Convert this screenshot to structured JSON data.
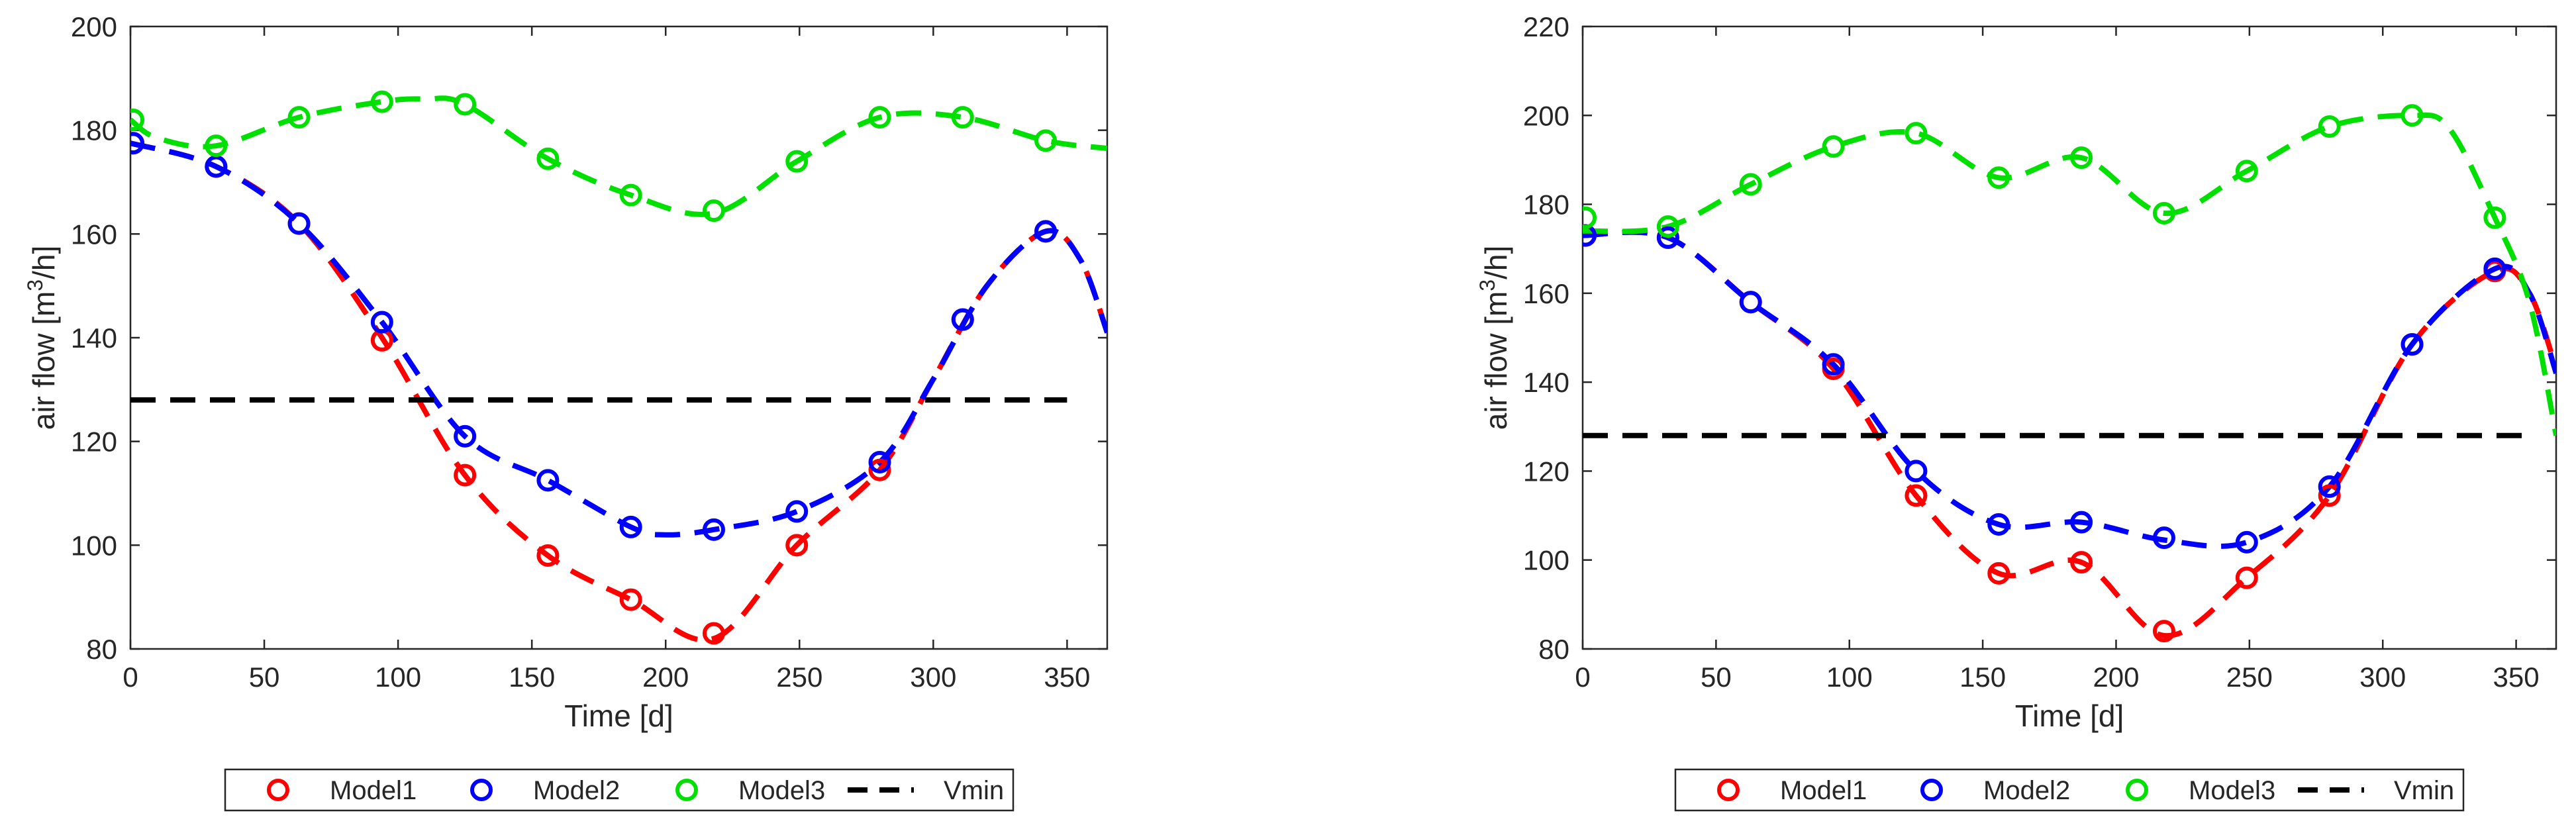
{
  "chart_data": [
    {
      "type": "line",
      "title": "",
      "xlabel": "Time [d]",
      "ylabel": "air flow [m³/h]",
      "ylabel_parts": {
        "base": "air flow [m",
        "sup": "3",
        "tail": "/h]"
      },
      "xlim": [
        0,
        365
      ],
      "ylim": [
        80,
        200
      ],
      "xticks": [
        0,
        50,
        100,
        150,
        200,
        250,
        300,
        350
      ],
      "yticks": [
        80,
        100,
        120,
        140,
        160,
        180,
        200
      ],
      "markers_x": [
        1,
        32,
        63,
        94,
        125,
        156,
        187,
        218,
        249,
        280,
        311,
        342
      ],
      "series": [
        {
          "name": "Model1",
          "color": "#ff0000",
          "marker_values": [
            177.5,
            173,
            162,
            139.5,
            113.5,
            98,
            89.5,
            83,
            100,
            114.5,
            143.5,
            160.5
          ],
          "curve": {
            "x": [
              0,
              32,
              63,
              94,
              125,
              156,
              187,
              218,
              249,
              280,
              300,
              320,
              342,
              355,
              365
            ],
            "y": [
              177.5,
              173,
              162,
              140,
              113.5,
              98,
              89.5,
              82,
              100,
              114.5,
              132,
              150,
              160.5,
              155,
              141
            ]
          }
        },
        {
          "name": "Model2",
          "color": "#0000ff",
          "marker_values": [
            177.5,
            173,
            162,
            143,
            121,
            112.5,
            103.5,
            103,
            106.5,
            116,
            143.5,
            160.5
          ],
          "curve": {
            "x": [
              0,
              32,
              63,
              94,
              125,
              156,
              187,
              200,
              218,
              249,
              280,
              300,
              320,
              342,
              355,
              365
            ],
            "y": [
              177.5,
              173,
              162,
              143,
              121,
              112.5,
              103.5,
              102,
              103,
              106.5,
              116,
              132,
              150,
              160.5,
              155,
              141
            ]
          }
        },
        {
          "name": "Model3",
          "color": "#00e000",
          "marker_values": [
            182,
            177,
            182.5,
            185.5,
            185,
            174.5,
            167.5,
            164.5,
            174,
            182.5,
            182.5,
            178
          ],
          "curve": {
            "x": [
              0,
              10,
              32,
              63,
              94,
              110,
              125,
              156,
              187,
              218,
              249,
              280,
              311,
              342,
              365
            ],
            "y": [
              182,
              178.5,
              177,
              182.5,
              185.5,
              186,
              185,
              174.5,
              167.5,
              164,
              174,
              182.5,
              182.5,
              178,
              176.5
            ]
          }
        },
        {
          "name": "Vmin",
          "color": "#000000",
          "x": [
            0,
            350
          ],
          "y": [
            128,
            128
          ]
        }
      ],
      "legend": [
        "Model1",
        "Model2",
        "Model3",
        "Vmin"
      ],
      "legend_position": "bottom"
    },
    {
      "type": "line",
      "title": "",
      "xlabel": "Time [d]",
      "ylabel": "air flow [m³/h]",
      "ylabel_parts": {
        "base": "air flow [m",
        "sup": "3",
        "tail": "/h]"
      },
      "xlim": [
        0,
        365
      ],
      "ylim": [
        80,
        220
      ],
      "xticks": [
        0,
        50,
        100,
        150,
        200,
        250,
        300,
        350
      ],
      "yticks": [
        80,
        100,
        120,
        140,
        160,
        180,
        200,
        220
      ],
      "markers_x": [
        1,
        32,
        63,
        94,
        125,
        156,
        187,
        218,
        249,
        280,
        311,
        342
      ],
      "series": [
        {
          "name": "Model1",
          "color": "#ff0000",
          "marker_values": [
            173,
            172.5,
            158,
            143,
            114.5,
            97,
            99.5,
            84,
            96,
            114.5,
            148.5,
            165
          ],
          "curve": {
            "x": [
              0,
              32,
              63,
              94,
              125,
              156,
              187,
              218,
              249,
              280,
              311,
              342,
              355,
              365
            ],
            "y": [
              173,
              172.5,
              158,
              143,
              114.5,
              97,
              99.5,
              83,
              96,
              114.5,
              148.5,
              165,
              160,
              143
            ]
          }
        },
        {
          "name": "Model2",
          "color": "#0000ff",
          "marker_values": [
            173,
            172.5,
            158,
            144,
            120,
            108,
            108.5,
            105,
            104,
            116.5,
            148.5,
            165.5
          ],
          "curve": {
            "x": [
              0,
              32,
              63,
              94,
              125,
              156,
              187,
              218,
              249,
              280,
              311,
              342,
              355,
              365
            ],
            "y": [
              173,
              172.5,
              158,
              144,
              120,
              108,
              108.5,
              104.5,
              104,
              116.5,
              148.5,
              165.5,
              160,
              142
            ]
          }
        },
        {
          "name": "Model3",
          "color": "#00e000",
          "marker_values": [
            177,
            175,
            184.5,
            193,
            196,
            186,
            190.5,
            178,
            187.5,
            197.5,
            200,
            177
          ],
          "curve": {
            "x": [
              0,
              32,
              63,
              94,
              125,
              156,
              187,
              218,
              249,
              280,
              311,
              325,
              342,
              355,
              365
            ],
            "y": [
              174,
              175,
              184.5,
              193,
              196,
              186,
              190.5,
              178,
              187.5,
              197.5,
              200,
              197,
              177,
              158,
              128
            ]
          }
        },
        {
          "name": "Vmin",
          "color": "#000000",
          "x": [
            0,
            355
          ],
          "y": [
            128,
            128
          ]
        }
      ],
      "legend": [
        "Model1",
        "Model2",
        "Model3",
        "Vmin"
      ],
      "legend_position": "bottom"
    }
  ]
}
